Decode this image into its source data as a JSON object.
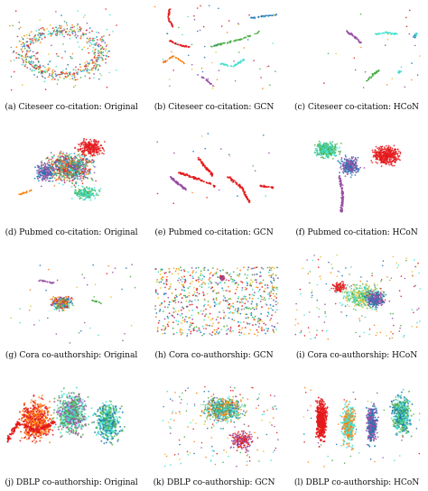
{
  "figure": {
    "colors": [
      "#e41a1c",
      "#984ea3",
      "#4daf4a",
      "#40e0d0",
      "#ff7f0e",
      "#1f77b4",
      "#e6c229",
      "#d62728"
    ]
  },
  "chart_data": [
    {
      "type": "scatter",
      "caption": "(a) Citeseer co-citation: Original",
      "layout": "ring"
    },
    {
      "type": "scatter",
      "caption": "(b) Citeseer co-citation: GCN",
      "layout": "strands"
    },
    {
      "type": "scatter",
      "caption": "(c) Citeseer co-citation: HCoN",
      "layout": "sparse-clusters"
    },
    {
      "type": "scatter",
      "caption": "(d) Pubmed co-citation: Original",
      "layout": "dense-blob"
    },
    {
      "type": "scatter",
      "caption": "(e) Pubmed co-citation: GCN",
      "layout": "strands"
    },
    {
      "type": "scatter",
      "caption": "(f) Pubmed co-citation: HCoN",
      "layout": "triangle"
    },
    {
      "type": "scatter",
      "caption": "(g) Cora co-authorship: Original",
      "layout": "core-blob"
    },
    {
      "type": "scatter",
      "caption": "(h) Cora co-authorship: GCN",
      "layout": "diffuse"
    },
    {
      "type": "scatter",
      "caption": "(i) Cora co-authorship: HCoN",
      "layout": "mixed-core"
    },
    {
      "type": "scatter",
      "caption": "(j) DBLP co-authorship: Original",
      "layout": "dense-fill"
    },
    {
      "type": "scatter",
      "caption": "(k) DBLP co-authorship: GCN",
      "layout": "dense-spread"
    },
    {
      "type": "scatter",
      "caption": "(l) DBLP co-authorship: HCoN",
      "layout": "separated-blobs"
    }
  ]
}
